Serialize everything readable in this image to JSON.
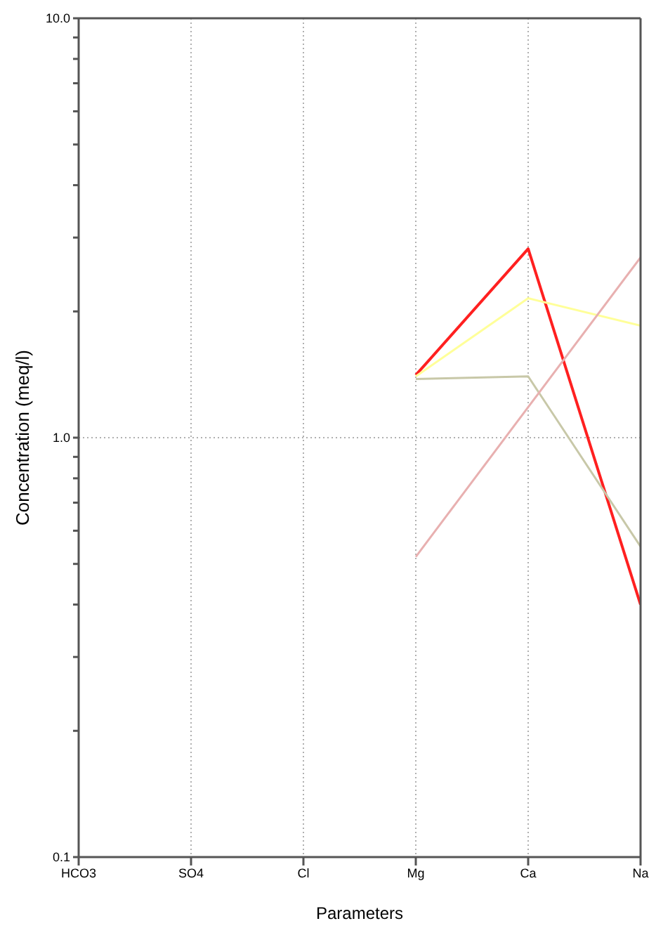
{
  "chart_data": {
    "type": "line",
    "xlabel": "Parameters",
    "ylabel": "Concentration (meq/l)",
    "categories": [
      "HCO3",
      "SO4",
      "Cl",
      "Mg",
      "Ca",
      "Na"
    ],
    "series": [
      {
        "color": "#ff2020",
        "values": [
          null,
          null,
          null,
          1.41,
          2.82,
          0.4
        ]
      },
      {
        "color": "#ffff99",
        "values": [
          null,
          null,
          null,
          1.4,
          2.15,
          1.85
        ]
      },
      {
        "color": "#c8c8a8",
        "values": [
          null,
          null,
          null,
          1.38,
          1.4,
          0.55
        ]
      },
      {
        "color": "#e8b0b0",
        "values": [
          null,
          null,
          null,
          0.52,
          null,
          2.69
        ]
      }
    ],
    "log": true,
    "ylim": [
      0.1,
      10
    ],
    "yticks": [
      0.1,
      {
        "value": 0.2,
        "label": null
      },
      {
        "value": 0.3,
        "label": null
      },
      {
        "value": 0.4,
        "label": null
      },
      {
        "value": 0.5,
        "label": null
      },
      {
        "value": 0.6,
        "label": null
      },
      {
        "value": 0.7,
        "label": null
      },
      {
        "value": 0.8,
        "label": null
      },
      {
        "value": 0.9,
        "label": null
      },
      {
        "value": 1,
        "label": "1.0"
      },
      {
        "value": 2,
        "label": null
      },
      {
        "value": 3,
        "label": null
      },
      {
        "value": 4,
        "label": null
      },
      {
        "value": 5,
        "label": null
      },
      {
        "value": 6,
        "label": null
      },
      {
        "value": 7,
        "label": null
      },
      {
        "value": 8,
        "label": null
      },
      {
        "value": 9,
        "label": null
      },
      {
        "value": 10,
        "label": "10.0"
      }
    ],
    "grid": true,
    "marker": "none",
    "line_style": "solid"
  }
}
